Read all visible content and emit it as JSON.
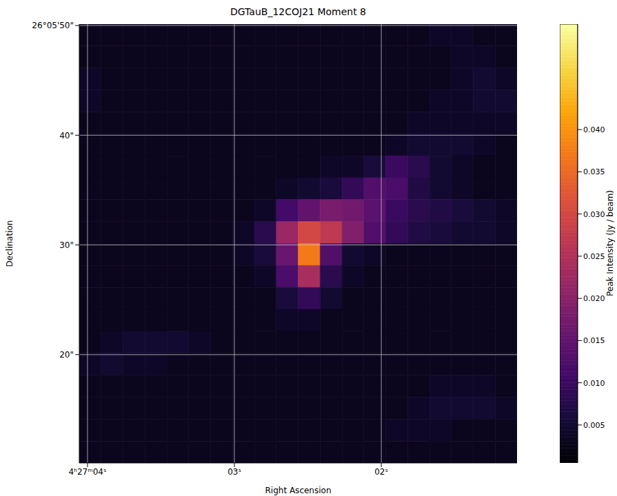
{
  "chart_data": {
    "type": "heatmap",
    "title": "DGTauB_12COJ21 Moment 8",
    "x_label": "Right Ascension",
    "y_label": "Declination",
    "xlim": [
      4.056,
      1.076
    ],
    "ylim": [
      10.13,
      50.13
    ],
    "xticks": [
      {
        "value": 4,
        "label": "4ʰ27ᵐ04ˢ"
      },
      {
        "value": 3,
        "label": "03ˢ"
      },
      {
        "value": 2,
        "label": "02ˢ"
      }
    ],
    "yticks": [
      {
        "value": 50,
        "label": "26°05'50\""
      },
      {
        "value": 40,
        "label": "40\""
      },
      {
        "value": 30,
        "label": "30\""
      },
      {
        "value": 20,
        "label": "20\""
      }
    ],
    "grid": true,
    "x": [
      3.981,
      3.832,
      3.683,
      3.534,
      3.385,
      3.236,
      3.087,
      2.938,
      2.789,
      2.64,
      2.491,
      2.342,
      2.193,
      2.044,
      1.895,
      1.746,
      1.597,
      1.448,
      1.299,
      1.15
    ],
    "y": [
      49.13,
      47.13,
      45.13,
      43.13,
      41.13,
      39.13,
      37.13,
      35.13,
      33.13,
      31.13,
      29.13,
      27.13,
      25.13,
      23.13,
      21.13,
      19.13,
      17.13,
      15.13,
      13.13,
      11.13
    ],
    "cells": [
      [
        0.003,
        0.003,
        0.003,
        0.003,
        0.003,
        0.003,
        0.003,
        0.003,
        0.003,
        0.003,
        0.003,
        0.003,
        0.003,
        0.003,
        0.003,
        0.003,
        0.004,
        0.004,
        0.003,
        0.003
      ],
      [
        0.003,
        0.003,
        0.003,
        0.003,
        0.003,
        0.003,
        0.003,
        0.003,
        0.003,
        0.003,
        0.003,
        0.003,
        0.003,
        0.003,
        0.003,
        0.003,
        0.003,
        0.004,
        0.004,
        0.003
      ],
      [
        0.004,
        0.003,
        0.003,
        0.003,
        0.003,
        0.003,
        0.003,
        0.003,
        0.003,
        0.003,
        0.003,
        0.003,
        0.003,
        0.003,
        0.003,
        0.003,
        0.003,
        0.004,
        0.005,
        0.004
      ],
      [
        0.004,
        0.003,
        0.003,
        0.003,
        0.003,
        0.003,
        0.003,
        0.003,
        0.003,
        0.003,
        0.003,
        0.003,
        0.003,
        0.003,
        0.003,
        0.003,
        0.004,
        0.004,
        0.005,
        0.005
      ],
      [
        0.003,
        0.003,
        0.003,
        0.003,
        0.003,
        0.003,
        0.003,
        0.003,
        0.003,
        0.003,
        0.003,
        0.003,
        0.003,
        0.003,
        0.003,
        0.004,
        0.004,
        0.004,
        0.004,
        0.004
      ],
      [
        0.003,
        0.003,
        0.003,
        0.003,
        0.003,
        0.003,
        0.003,
        0.003,
        0.003,
        0.003,
        0.003,
        0.003,
        0.003,
        0.003,
        0.004,
        0.005,
        0.005,
        0.005,
        0.004,
        0.003
      ],
      [
        0.003,
        0.003,
        0.003,
        0.003,
        0.003,
        0.003,
        0.003,
        0.003,
        0.003,
        0.003,
        0.003,
        0.004,
        0.004,
        0.006,
        0.01,
        0.008,
        0.005,
        0.004,
        0.003,
        0.003
      ],
      [
        0.003,
        0.003,
        0.003,
        0.003,
        0.003,
        0.003,
        0.003,
        0.003,
        0.003,
        0.004,
        0.005,
        0.006,
        0.009,
        0.013,
        0.012,
        0.007,
        0.005,
        0.004,
        0.003,
        0.003
      ],
      [
        0.003,
        0.003,
        0.003,
        0.003,
        0.003,
        0.003,
        0.003,
        0.003,
        0.004,
        0.011,
        0.015,
        0.018,
        0.017,
        0.014,
        0.01,
        0.008,
        0.007,
        0.006,
        0.005,
        0.004
      ],
      [
        0.003,
        0.003,
        0.003,
        0.003,
        0.003,
        0.003,
        0.003,
        0.004,
        0.008,
        0.022,
        0.03,
        0.027,
        0.019,
        0.013,
        0.009,
        0.007,
        0.006,
        0.005,
        0.005,
        0.004
      ],
      [
        0.003,
        0.003,
        0.003,
        0.003,
        0.003,
        0.003,
        0.003,
        0.004,
        0.006,
        0.016,
        0.037,
        0.013,
        0.005,
        0.004,
        0.003,
        0.003,
        0.003,
        0.003,
        0.003,
        0.003
      ],
      [
        0.003,
        0.003,
        0.003,
        0.003,
        0.003,
        0.003,
        0.003,
        0.003,
        0.004,
        0.012,
        0.024,
        0.008,
        0.004,
        0.003,
        0.003,
        0.003,
        0.003,
        0.003,
        0.003,
        0.003
      ],
      [
        0.003,
        0.003,
        0.003,
        0.003,
        0.003,
        0.003,
        0.003,
        0.003,
        0.003,
        0.006,
        0.009,
        0.005,
        0.003,
        0.003,
        0.003,
        0.003,
        0.003,
        0.003,
        0.003,
        0.003
      ],
      [
        0.003,
        0.003,
        0.003,
        0.003,
        0.003,
        0.003,
        0.003,
        0.003,
        0.003,
        0.004,
        0.004,
        0.003,
        0.003,
        0.003,
        0.003,
        0.003,
        0.003,
        0.003,
        0.003,
        0.003
      ],
      [
        0.003,
        0.004,
        0.005,
        0.005,
        0.005,
        0.004,
        0.003,
        0.003,
        0.003,
        0.003,
        0.003,
        0.003,
        0.003,
        0.003,
        0.003,
        0.003,
        0.003,
        0.003,
        0.003,
        0.003
      ],
      [
        0.004,
        0.005,
        0.004,
        0.004,
        0.003,
        0.003,
        0.003,
        0.003,
        0.003,
        0.003,
        0.003,
        0.003,
        0.003,
        0.003,
        0.003,
        0.003,
        0.003,
        0.003,
        0.003,
        0.003
      ],
      [
        0.003,
        0.003,
        0.003,
        0.003,
        0.003,
        0.003,
        0.003,
        0.003,
        0.003,
        0.003,
        0.003,
        0.003,
        0.003,
        0.003,
        0.003,
        0.003,
        0.004,
        0.004,
        0.004,
        0.003
      ],
      [
        0.003,
        0.003,
        0.003,
        0.003,
        0.003,
        0.003,
        0.003,
        0.003,
        0.003,
        0.003,
        0.003,
        0.003,
        0.003,
        0.003,
        0.003,
        0.004,
        0.005,
        0.005,
        0.005,
        0.004
      ],
      [
        0.003,
        0.003,
        0.003,
        0.003,
        0.003,
        0.003,
        0.003,
        0.003,
        0.003,
        0.003,
        0.003,
        0.003,
        0.003,
        0.003,
        0.004,
        0.004,
        0.004,
        0.003,
        0.003,
        0.003
      ],
      [
        0.003,
        0.003,
        0.003,
        0.003,
        0.003,
        0.003,
        0.003,
        0.003,
        0.003,
        0.003,
        0.003,
        0.003,
        0.003,
        0.003,
        0.003,
        0.003,
        0.003,
        0.003,
        0.003,
        0.003
      ]
    ],
    "colorbar": {
      "label": "Peak Intensity (Jy / beam)",
      "range": [
        0.0005,
        0.0525
      ],
      "ticks": [
        0.005,
        {
          "value": 0.01,
          "label": "0.010"
        },
        0.015,
        {
          "value": 0.02,
          "label": "0.020"
        },
        0.025,
        {
          "value": 0.03,
          "label": "0.030"
        },
        0.035,
        {
          "value": 0.04,
          "label": "0.040"
        }
      ]
    }
  }
}
